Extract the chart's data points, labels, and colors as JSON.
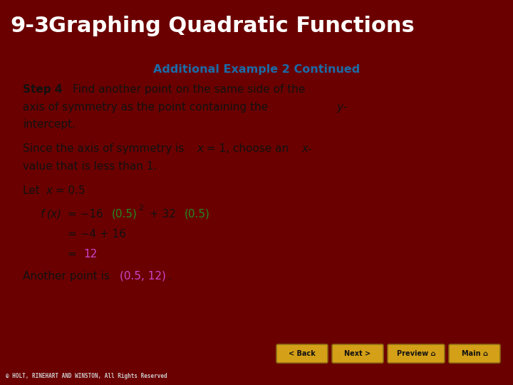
{
  "title_prefix": "9-3",
  "title_main": "  Graphing Quadratic Functions",
  "subtitle": "Additional Example 2 Continued",
  "header_bg": "#6B0000",
  "header_text_color": "#FFFFFF",
  "subtitle_color": "#1B6CA8",
  "content_bg": "#FFFFFF",
  "footer_bg": "#7A0000",
  "copyright_bg": "#111111",
  "copyright_text": "© HOLT, RINEHART AND WINSTON, All Rights Reserved",
  "purple_color": "#CC44CC",
  "green_color": "#228B22",
  "body_text_color": "#111111",
  "button_color": "#D4A017",
  "button_border": "#8B6914",
  "buttons": [
    "< Back",
    "Next >",
    "Preview",
    "Main"
  ]
}
